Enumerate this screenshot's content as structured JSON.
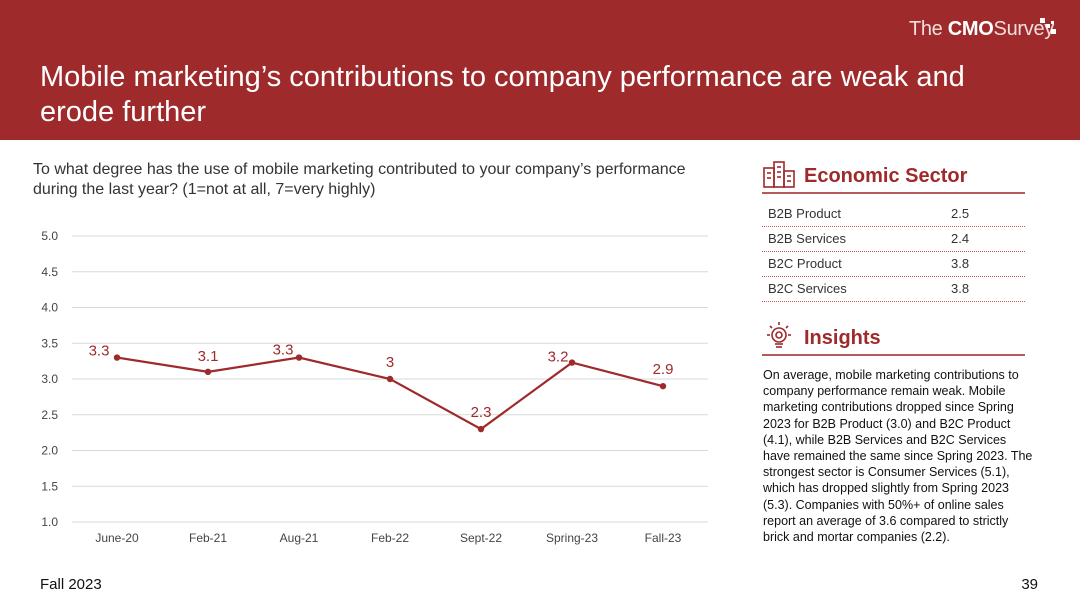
{
  "header": {
    "brand_prefix": "The",
    "brand_bold": "CMO",
    "brand_suffix": "Survey",
    "title": "Mobile marketing’s contributions to company performance are weak and erode further"
  },
  "question": "To what degree has the use of mobile marketing contributed to your company’s performance during the last year? (1=not at all, 7=very highly)",
  "chart_data": {
    "type": "line",
    "categories": [
      "June-20",
      "Feb-21",
      "Aug-21",
      "Feb-22",
      "Sept-22",
      "Spring-23",
      "Fall-23"
    ],
    "values": [
      3.3,
      3.1,
      3.3,
      3.0,
      2.3,
      3.23,
      2.9
    ],
    "data_labels": [
      "3.3",
      "3.1",
      "3.3",
      "3",
      "2.3",
      "3.2",
      "2.9"
    ],
    "y_ticks": [
      "1.0",
      "1.5",
      "2.0",
      "2.5",
      "3.0",
      "3.5",
      "4.0",
      "4.5",
      "5.0"
    ],
    "ylim": [
      1.0,
      5.0
    ],
    "title": "",
    "xlabel": "",
    "ylabel": "",
    "line_color": "#9e2a2b",
    "grid": true
  },
  "sidebar": {
    "sector_heading": "Economic Sector",
    "sectors": [
      {
        "name": "B2B Product",
        "value": "2.5"
      },
      {
        "name": "B2B Services",
        "value": "2.4"
      },
      {
        "name": "B2C Product",
        "value": "3.8"
      },
      {
        "name": "B2C Services",
        "value": "3.8"
      }
    ],
    "insights_heading": "Insights",
    "insights_text": "On average, mobile marketing contributions to company performance remain weak. Mobile marketing contributions dropped since Spring 2023 for B2B Product (3.0) and B2C Product (4.1), while B2B Services and B2C Services have remained the same since Spring 2023. The strongest sector is Consumer Services (5.1), which has dropped slightly from Spring 2023 (5.3). Companies with 50%+ of online sales report an average of 3.6 compared to strictly brick and mortar companies (2.2)."
  },
  "footer": {
    "left": "Fall 2023",
    "page_number": "39"
  },
  "colors": {
    "brand_red": "#9e2a2b"
  },
  "icons": [
    "buildings-icon",
    "lightbulb-gear-icon",
    "brand-dots-icon"
  ]
}
